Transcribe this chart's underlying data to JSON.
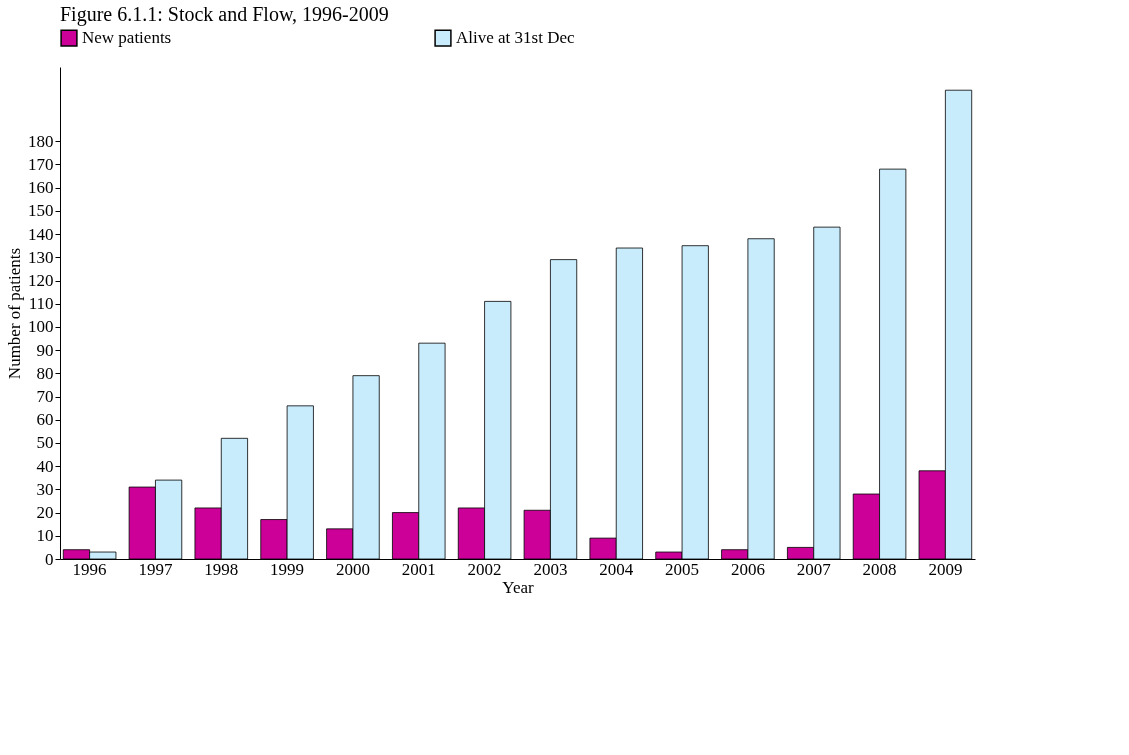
{
  "chart_data": {
    "type": "bar",
    "title": "Figure 6.1.1: Stock and Flow, 1996-2009",
    "xlabel": "Year",
    "ylabel": "Number of patients",
    "categories": [
      "1996",
      "1997",
      "1998",
      "1999",
      "2000",
      "2001",
      "2002",
      "2003",
      "2004",
      "2005",
      "2006",
      "2007",
      "2008",
      "2009"
    ],
    "series": [
      {
        "name": "New patients",
        "color": "#cc0099",
        "values": [
          4,
          31,
          22,
          17,
          13,
          20,
          22,
          21,
          9,
          3,
          4,
          5,
          28,
          38
        ]
      },
      {
        "name": "Alive at 31st Dec",
        "color": "#c8ecfc",
        "values": [
          3,
          34,
          52,
          66,
          79,
          93,
          111,
          129,
          134,
          135,
          138,
          143,
          168,
          202
        ]
      }
    ],
    "ylim": [
      0,
      212
    ],
    "yticks": [
      0,
      10,
      20,
      30,
      40,
      50,
      60,
      70,
      80,
      90,
      100,
      110,
      120,
      130,
      140,
      150,
      160,
      170,
      180
    ],
    "grid": false,
    "legend": "top"
  }
}
